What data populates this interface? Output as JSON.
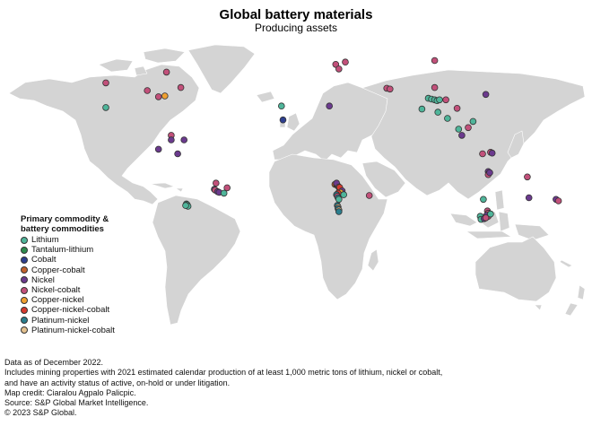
{
  "header": {
    "title": "Global battery materials",
    "subtitle": "Producing assets"
  },
  "legend": {
    "title_line1": "Primary commodity &",
    "title_line2": "battery commodities",
    "items": [
      {
        "label": "Lithium",
        "color": "#4fb59a"
      },
      {
        "label": "Tantalum-lithium",
        "color": "#2e8b4e"
      },
      {
        "label": "Cobalt",
        "color": "#2e3f8f"
      },
      {
        "label": "Copper-cobalt",
        "color": "#c2622d"
      },
      {
        "label": "Nickel",
        "color": "#6b3a8e"
      },
      {
        "label": "Nickel-cobalt",
        "color": "#c2507a"
      },
      {
        "label": "Copper-nickel",
        "color": "#f0a030"
      },
      {
        "label": "Copper-nickel-cobalt",
        "color": "#d63a2f"
      },
      {
        "label": "Platinum-nickel",
        "color": "#2a7e8e"
      },
      {
        "label": "Platinum-nickel-cobalt",
        "color": "#e3c18f"
      }
    ]
  },
  "notes": [
    "Data as of December 2022.",
    "Includes mining properties with 2021 estimated calendar production of at least 1,000 metric tons of lithium, nickel or cobalt,",
    "and have an activity status of active, on-hold or under litigation.",
    "Map credit: Ciaralou Agpalo Palicpic.",
    "Source: S&P Global Market Intelligence.",
    "© 2023 S&P Global."
  ],
  "map_data": {
    "assets": [
      {
        "commodity": "Nickel-cobalt",
        "lon": -118,
        "lat": 55
      },
      {
        "commodity": "Nickel-cobalt",
        "lon": -80,
        "lat": 62
      },
      {
        "commodity": "Nickel-cobalt",
        "lon": -71,
        "lat": 52
      },
      {
        "commodity": "Nickel-cobalt",
        "lon": -92,
        "lat": 50
      },
      {
        "commodity": "Nickel-cobalt",
        "lon": -85,
        "lat": 46
      },
      {
        "commodity": "Copper-nickel",
        "lon": -81,
        "lat": 46.5
      },
      {
        "commodity": "Lithium",
        "lon": -118,
        "lat": 39
      },
      {
        "commodity": "Nickel-cobalt",
        "lon": -77,
        "lat": 21
      },
      {
        "commodity": "Nickel",
        "lon": -69,
        "lat": 18
      },
      {
        "commodity": "Nickel",
        "lon": -77,
        "lat": 18
      },
      {
        "commodity": "Nickel",
        "lon": -85,
        "lat": 12
      },
      {
        "commodity": "Nickel",
        "lon": -73,
        "lat": 9
      },
      {
        "commodity": "Nickel-cobalt",
        "lon": -49,
        "lat": -10
      },
      {
        "commodity": "Nickel",
        "lon": -50,
        "lat": -14
      },
      {
        "commodity": "Nickel-cobalt",
        "lon": -49.5,
        "lat": -14.5
      },
      {
        "commodity": "Nickel",
        "lon": -48,
        "lat": -15.5
      },
      {
        "commodity": "Nickel",
        "lon": -47,
        "lat": -16
      },
      {
        "commodity": "Lithium",
        "lon": -44,
        "lat": -16.5
      },
      {
        "commodity": "Nickel-cobalt",
        "lon": -42,
        "lat": -13
      },
      {
        "commodity": "Lithium",
        "lon": -67.5,
        "lat": -23.5
      },
      {
        "commodity": "Lithium",
        "lon": -67,
        "lat": -24
      },
      {
        "commodity": "Lithium",
        "lon": -66.5,
        "lat": -25
      },
      {
        "commodity": "Lithium",
        "lon": -68,
        "lat": -24.5
      },
      {
        "commodity": "Lithium",
        "lon": -8,
        "lat": 40
      },
      {
        "commodity": "Cobalt",
        "lon": -7,
        "lat": 31
      },
      {
        "commodity": "Nickel",
        "lon": 22,
        "lat": 40
      },
      {
        "commodity": "Nickel-cobalt",
        "lon": 26,
        "lat": 67
      },
      {
        "commodity": "Nickel-cobalt",
        "lon": 32,
        "lat": 68.5
      },
      {
        "commodity": "Nickel-cobalt",
        "lon": 28,
        "lat": 64
      },
      {
        "commodity": "Nickel-cobalt",
        "lon": 88,
        "lat": 69.5
      },
      {
        "commodity": "Nickel-cobalt",
        "lon": 58,
        "lat": 51.5
      },
      {
        "commodity": "Nickel-cobalt",
        "lon": 60,
        "lat": 51
      },
      {
        "commodity": "Nickel-cobalt",
        "lon": 88,
        "lat": 52
      },
      {
        "commodity": "Lithium",
        "lon": 84,
        "lat": 45
      },
      {
        "commodity": "Lithium",
        "lon": 86,
        "lat": 44.5
      },
      {
        "commodity": "Lithium",
        "lon": 88,
        "lat": 44
      },
      {
        "commodity": "Lithium",
        "lon": 89.5,
        "lat": 43.5
      },
      {
        "commodity": "Lithium",
        "lon": 91,
        "lat": 44
      },
      {
        "commodity": "Nickel-cobalt",
        "lon": 95,
        "lat": 44
      },
      {
        "commodity": "Lithium",
        "lon": 80,
        "lat": 38
      },
      {
        "commodity": "Lithium",
        "lon": 90,
        "lat": 36
      },
      {
        "commodity": "Lithium",
        "lon": 96,
        "lat": 32
      },
      {
        "commodity": "Nickel-cobalt",
        "lon": 102,
        "lat": 38.5
      },
      {
        "commodity": "Nickel",
        "lon": 120,
        "lat": 47.5
      },
      {
        "commodity": "Lithium",
        "lon": 112,
        "lat": 30
      },
      {
        "commodity": "Lithium",
        "lon": 103,
        "lat": 25
      },
      {
        "commodity": "Nickel-cobalt",
        "lon": 109,
        "lat": 26
      },
      {
        "commodity": "Nickel",
        "lon": 105,
        "lat": 21
      },
      {
        "commodity": "Nickel-cobalt",
        "lon": 118,
        "lat": 9
      },
      {
        "commodity": "Nickel-cobalt",
        "lon": 123,
        "lat": 10
      },
      {
        "commodity": "Nickel",
        "lon": 124,
        "lat": 9.5
      },
      {
        "commodity": "Nickel",
        "lon": 121.5,
        "lat": -2.5
      },
      {
        "commodity": "Nickel",
        "lon": 122,
        "lat": -3.5
      },
      {
        "commodity": "Nickel-cobalt",
        "lon": 121.5,
        "lat": -4.5
      },
      {
        "commodity": "Nickel",
        "lon": 122.5,
        "lat": -3.2
      },
      {
        "commodity": "Nickel-cobalt",
        "lon": 146,
        "lat": -6
      },
      {
        "commodity": "Nickel",
        "lon": 164,
        "lat": -20.5
      },
      {
        "commodity": "Nickel-cobalt",
        "lon": 165.5,
        "lat": -21.5
      },
      {
        "commodity": "Lithium",
        "lon": 118.5,
        "lat": -20.5
      },
      {
        "commodity": "Lithium",
        "lon": 116.5,
        "lat": -31.5
      },
      {
        "commodity": "Lithium",
        "lon": 117,
        "lat": -33.5
      },
      {
        "commodity": "Nickel-cobalt",
        "lon": 121,
        "lat": -28
      },
      {
        "commodity": "Nickel-cobalt",
        "lon": 121.5,
        "lat": -29.5
      },
      {
        "commodity": "Nickel-cobalt",
        "lon": 122,
        "lat": -30.5
      },
      {
        "commodity": "Nickel-cobalt",
        "lon": 121.5,
        "lat": -31.5
      },
      {
        "commodity": "Nickel",
        "lon": 120.5,
        "lat": -31
      },
      {
        "commodity": "Lithium",
        "lon": 123,
        "lat": -30
      },
      {
        "commodity": "Nickel",
        "lon": 119,
        "lat": -33
      },
      {
        "commodity": "Nickel-cobalt",
        "lon": 120,
        "lat": -32.5
      },
      {
        "commodity": "Nickel",
        "lon": 147,
        "lat": -19.5
      },
      {
        "commodity": "Copper-cobalt",
        "lon": 25.5,
        "lat": -10.8
      },
      {
        "commodity": "Copper-cobalt",
        "lon": 26.5,
        "lat": -11
      },
      {
        "commodity": "Copper-cobalt",
        "lon": 27,
        "lat": -11.5
      },
      {
        "commodity": "Copper-cobalt",
        "lon": 27.5,
        "lat": -12
      },
      {
        "commodity": "Nickel",
        "lon": 26.5,
        "lat": -10
      },
      {
        "commodity": "Nickel",
        "lon": 28.5,
        "lat": -13.5
      },
      {
        "commodity": "Nickel-cobalt",
        "lon": 28,
        "lat": -12.5
      },
      {
        "commodity": "Copper-nickel-cobalt",
        "lon": 28.5,
        "lat": -12.8
      },
      {
        "commodity": "Nickel",
        "lon": 30,
        "lat": -15
      },
      {
        "commodity": "Copper-nickel",
        "lon": 29,
        "lat": -16
      },
      {
        "commodity": "Copper-nickel-cobalt",
        "lon": 27.5,
        "lat": -16.5
      },
      {
        "commodity": "Platinum-nickel",
        "lon": 26.5,
        "lat": -17.5
      },
      {
        "commodity": "Nickel-cobalt",
        "lon": 27,
        "lat": -18.5
      },
      {
        "commodity": "Platinum-nickel",
        "lon": 27.5,
        "lat": -19.5
      },
      {
        "commodity": "Lithium",
        "lon": 28,
        "lat": -20.5
      },
      {
        "commodity": "Lithium",
        "lon": 31,
        "lat": -17.5
      },
      {
        "commodity": "Platinum-nickel",
        "lon": 27,
        "lat": -24.5
      },
      {
        "commodity": "Platinum-nickel-cobalt",
        "lon": 27.5,
        "lat": -25.5
      },
      {
        "commodity": "Platinum-nickel",
        "lon": 27.5,
        "lat": -26.5
      },
      {
        "commodity": "Platinum-nickel-cobalt",
        "lon": 28,
        "lat": -27.5
      },
      {
        "commodity": "Platinum-nickel",
        "lon": 28,
        "lat": -28.5
      },
      {
        "commodity": "Nickel-cobalt",
        "lon": 47,
        "lat": -18
      }
    ]
  }
}
